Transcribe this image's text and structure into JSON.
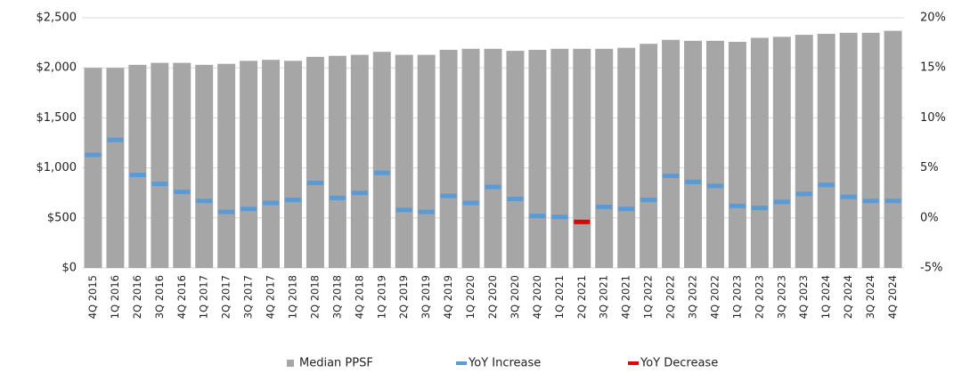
{
  "chart_data": {
    "type": "bar",
    "categories": [
      "4Q 2015",
      "1Q 2016",
      "2Q 2016",
      "3Q 2016",
      "4Q 2016",
      "1Q 2017",
      "2Q 2017",
      "3Q 2017",
      "4Q 2017",
      "1Q 2018",
      "2Q 2018",
      "3Q 2018",
      "4Q 2018",
      "1Q 2019",
      "2Q 2019",
      "3Q 2019",
      "4Q 2019",
      "1Q 2020",
      "2Q 2020",
      "3Q 2020",
      "4Q 2020",
      "1Q 2021",
      "2Q 2021",
      "3Q 2021",
      "4Q 2021",
      "1Q 2022",
      "2Q 2022",
      "3Q 2022",
      "4Q 2022",
      "1Q 2023",
      "2Q 2023",
      "3Q 2023",
      "4Q 2023",
      "1Q 2024",
      "2Q 2024",
      "3Q 2024",
      "4Q 2024"
    ],
    "series": [
      {
        "name": "Median PPSF",
        "color": "#a6a6a6",
        "values": [
          2000,
          2000,
          2030,
          2050,
          2050,
          2030,
          2040,
          2070,
          2080,
          2070,
          2110,
          2120,
          2130,
          2160,
          2130,
          2130,
          2180,
          2190,
          2190,
          2170,
          2180,
          2190,
          2190,
          2190,
          2200,
          2240,
          2280,
          2270,
          2270,
          2260,
          2300,
          2310,
          2330,
          2340,
          2350,
          2350,
          2370
        ]
      },
      {
        "name": "YoY Increase",
        "color": "#5b9bd5",
        "axis": "y2",
        "values": [
          6.3,
          7.8,
          4.3,
          3.4,
          2.6,
          1.7,
          0.6,
          0.9,
          1.5,
          1.8,
          3.5,
          2.0,
          2.5,
          4.5,
          0.8,
          0.6,
          2.2,
          1.5,
          3.1,
          1.9,
          0.2,
          0.1,
          null,
          1.1,
          0.9,
          1.8,
          4.2,
          3.6,
          3.2,
          1.2,
          1.0,
          1.6,
          2.4,
          3.3,
          2.1,
          1.7,
          1.7
        ]
      },
      {
        "name": "YoY Decrease",
        "color": "#e00000",
        "axis": "y2",
        "values": [
          null,
          null,
          null,
          null,
          null,
          null,
          null,
          null,
          null,
          null,
          null,
          null,
          null,
          null,
          null,
          null,
          null,
          null,
          null,
          null,
          null,
          null,
          -0.4,
          null,
          null,
          null,
          null,
          null,
          null,
          null,
          null,
          null,
          null,
          null,
          null,
          null,
          null
        ]
      }
    ],
    "ylim": [
      0,
      2500
    ],
    "yticks": [
      {
        "value": 0,
        "label": "$0"
      },
      {
        "value": 500,
        "label": "$500"
      },
      {
        "value": 1000,
        "label": "$1,000"
      },
      {
        "value": 1500,
        "label": "$1,500"
      },
      {
        "value": 2000,
        "label": "$2,000"
      },
      {
        "value": 2500,
        "label": "$2,500"
      }
    ],
    "y2lim": [
      -5,
      20
    ],
    "y2ticks": [
      {
        "value": -5,
        "label": "-5%"
      },
      {
        "value": 0,
        "label": "0%"
      },
      {
        "value": 5,
        "label": "5%"
      },
      {
        "value": 10,
        "label": "10%"
      },
      {
        "value": 15,
        "label": "15%"
      },
      {
        "value": 20,
        "label": "20%"
      }
    ],
    "grid": true,
    "legend": "bottom"
  }
}
